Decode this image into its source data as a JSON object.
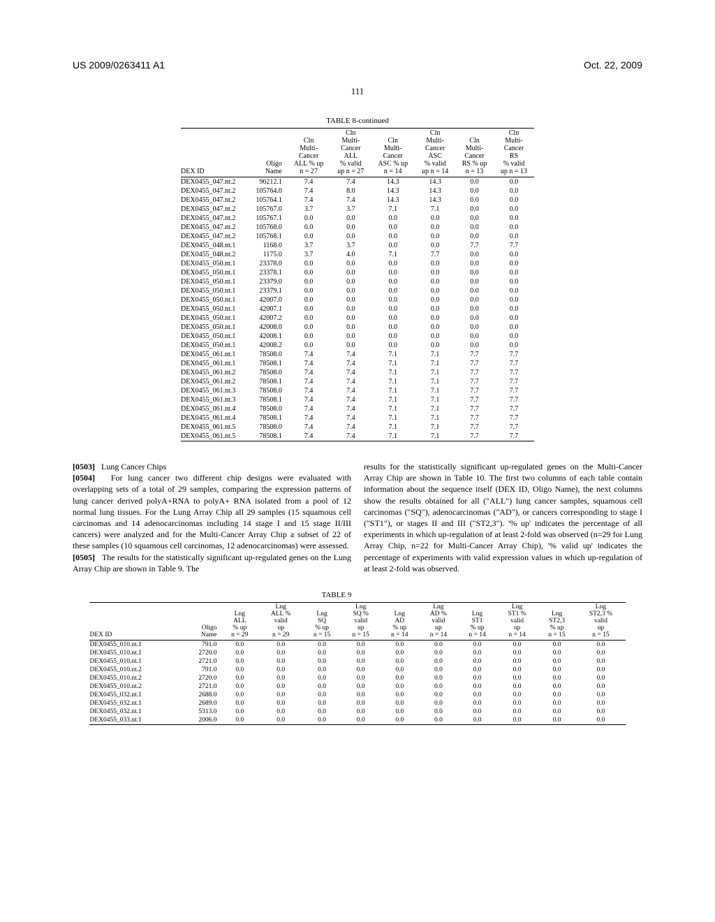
{
  "header": {
    "pub_no": "US 2009/0263411 A1",
    "date": "Oct. 22, 2009"
  },
  "page_number": "111",
  "table8": {
    "title": "TABLE 8-continued",
    "headers": [
      "DEX ID",
      "Oligo\nName",
      "Cln\nMulti-\nCancer\nALL % up\nn = 27",
      "Cln\nMulti-\nCancer\nALL\n% valid\nup n = 27",
      "Cln\nMulti-\nCancer\nASC % up\nn = 14",
      "Cln\nMulti-\nCancer\nASC\n% valid\nup n = 14",
      "Cln\nMulti-\nCancer\nRS % up\nn = 13",
      "Cln\nMulti-\nCancer\nRS\n% valid\nup n = 13"
    ],
    "rows": [
      [
        "DEX0455_047.nt.2",
        "96212.1",
        "7.4",
        "7.4",
        "14.3",
        "14.3",
        "0.0",
        "0.0"
      ],
      [
        "DEX0455_047.nt.2",
        "105764.0",
        "7.4",
        "8.0",
        "14.3",
        "14.3",
        "0.0",
        "0.0"
      ],
      [
        "DEX0455_047.nt.2",
        "105764.1",
        "7.4",
        "7.4",
        "14.3",
        "14.3",
        "0.0",
        "0.0"
      ],
      [
        "DEX0455_047.nt.2",
        "105767.0",
        "3.7",
        "3.7",
        "7.1",
        "7.1",
        "0.0",
        "0.0"
      ],
      [
        "DEX0455_047.nt.2",
        "105767.1",
        "0.0",
        "0.0",
        "0.0",
        "0.0",
        "0.0",
        "0.0"
      ],
      [
        "DEX0455_047.nt.2",
        "105768.0",
        "0.0",
        "0.0",
        "0.0",
        "0.0",
        "0.0",
        "0.0"
      ],
      [
        "DEX0455_047.nt.2",
        "105768.1",
        "0.0",
        "0.0",
        "0.0",
        "0.0",
        "0.0",
        "0.0"
      ],
      [
        "DEX0455_048.nt.1",
        "1168.0",
        "3.7",
        "3.7",
        "0.0",
        "0.0",
        "7.7",
        "7.7"
      ],
      [
        "DEX0455_048.nt.2",
        "1175.0",
        "3.7",
        "4.0",
        "7.1",
        "7.7",
        "0.0",
        "0.0"
      ],
      [
        "DEX0455_050.nt.1",
        "23378.0",
        "0.0",
        "0.0",
        "0.0",
        "0.0",
        "0.0",
        "0.0"
      ],
      [
        "DEX0455_050.nt.1",
        "23378.1",
        "0.0",
        "0.0",
        "0.0",
        "0.0",
        "0.0",
        "0.0"
      ],
      [
        "DEX0455_050.nt.1",
        "23379.0",
        "0.0",
        "0.0",
        "0.0",
        "0.0",
        "0.0",
        "0.0"
      ],
      [
        "DEX0455_050.nt.1",
        "23379.1",
        "0.0",
        "0.0",
        "0.0",
        "0.0",
        "0.0",
        "0.0"
      ],
      [
        "DEX0455_050.nt.1",
        "42007.0",
        "0.0",
        "0.0",
        "0.0",
        "0.0",
        "0.0",
        "0.0"
      ],
      [
        "DEX0455_050.nt.1",
        "42007.1",
        "0.0",
        "0.0",
        "0.0",
        "0.0",
        "0.0",
        "0.0"
      ],
      [
        "DEX0455_050.nt.1",
        "42007.2",
        "0.0",
        "0.0",
        "0.0",
        "0.0",
        "0.0",
        "0.0"
      ],
      [
        "DEX0455_050.nt.1",
        "42008.0",
        "0.0",
        "0.0",
        "0.0",
        "0.0",
        "0.0",
        "0.0"
      ],
      [
        "DEX0455_050.nt.1",
        "42008.1",
        "0.0",
        "0.0",
        "0.0",
        "0.0",
        "0.0",
        "0.0"
      ],
      [
        "DEX0455_050.nt.1",
        "42008.2",
        "0.0",
        "0.0",
        "0.0",
        "0.0",
        "0.0",
        "0.0"
      ],
      [
        "DEX0455_061.nt.1",
        "78508.0",
        "7.4",
        "7.4",
        "7.1",
        "7.1",
        "7.7",
        "7.7"
      ],
      [
        "DEX0455_061.nt.1",
        "78508.1",
        "7.4",
        "7.4",
        "7.1",
        "7.1",
        "7.7",
        "7.7"
      ],
      [
        "DEX0455_061.nt.2",
        "78508.0",
        "7.4",
        "7.4",
        "7.1",
        "7.1",
        "7.7",
        "7.7"
      ],
      [
        "DEX0455_061.nt.2",
        "78508.1",
        "7.4",
        "7.4",
        "7.1",
        "7.1",
        "7.7",
        "7.7"
      ],
      [
        "DEX0455_061.nt.3",
        "78508.0",
        "7.4",
        "7.4",
        "7.1",
        "7.1",
        "7.7",
        "7.7"
      ],
      [
        "DEX0455_061.nt.3",
        "78508.1",
        "7.4",
        "7.4",
        "7.1",
        "7.1",
        "7.7",
        "7.7"
      ],
      [
        "DEX0455_061.nt.4",
        "78508.0",
        "7.4",
        "7.4",
        "7.1",
        "7.1",
        "7.7",
        "7.7"
      ],
      [
        "DEX0455_061.nt.4",
        "78508.1",
        "7.4",
        "7.4",
        "7.1",
        "7.1",
        "7.7",
        "7.7"
      ],
      [
        "DEX0455_061.nt.5",
        "78508.0",
        "7.4",
        "7.4",
        "7.1",
        "7.1",
        "7.7",
        "7.7"
      ],
      [
        "DEX0455_061.nt.5",
        "78508.1",
        "7.4",
        "7.4",
        "7.1",
        "7.1",
        "7.7",
        "7.7"
      ]
    ]
  },
  "body": {
    "p0503_num": "[0503]",
    "p0503": "Lung Cancer Chips",
    "p0504_num": "[0504]",
    "p0504": "For lung cancer two different chip designs were evaluated with overlapping sets of a total of 29 samples, comparing the expression patterns of lung cancer derived polyA+RNA to polyA+ RNA isolated from a pool of 12 normal lung tissues. For the Lung Array Chip all 29 samples (15 squamous cell carcinomas and 14 adenocarcinomas including 14 stage I and 15 stage II/III cancers) were analyzed and for the Multi-Cancer Array Chip a subset of 22 of these samples (10 squamous cell carcinomas, 12 adenocarcinomas) were assessed.",
    "p0505_num": "[0505]",
    "p0505": "The results for the statistically significant up-regulated genes on the Lung Array Chip are shown in Table 9. The",
    "p_right": "results for the statistically significant up-regulated genes on the Multi-Cancer Array Chip are shown in Table 10. The first two columns of each table contain information about the sequence itself (DEX ID, Oligo Name), the next columns show the results obtained for all (\"ALL\") lung cancer samples, squamous cell carcinomas (\"SQ\"), adenocarcinomas (\"AD\"), or cancers corresponding to stage I (\"ST1\"), or stages II and III (\"ST2,3\"). '% up' indicates the percentage of all experiments in which up-regulation of at least 2-fold was observed (n=29 for Lung Array Chip, n=22 for Multi-Cancer Array Chip), '% valid up' indicates the percentage of experiments with valid expression values in which up-regulation of at least 2-fold was observed."
  },
  "table9": {
    "title": "TABLE 9",
    "headers": [
      "DEX ID",
      "Oligo\nName",
      "Lng\nALL\n% up\nn = 29",
      "Lng\nALL %\nvalid\nup\nn = 29",
      "Lng\nSQ\n% up\nn = 15",
      "Lng\nSQ %\nvalid\nup\nn = 15",
      "Lng\nAD\n% up\nn = 14",
      "Lng\nAD %\nvalid\nup\nn = 14",
      "Lng\nST1\n% up\nn = 14",
      "Lng\nST1 %\nvalid\nup\nn = 14",
      "Lng\nST2,3\n% up\nn = 15",
      "Lng\nST2,3 %\nvalid\nup\nn = 15"
    ],
    "rows": [
      [
        "DEX0455_010.nt.1",
        "791.0",
        "0.0",
        "0.0",
        "0.0",
        "0.0",
        "0.0",
        "0.0",
        "0.0",
        "0.0",
        "0.0",
        "0.0"
      ],
      [
        "DEX0455_010.nt.1",
        "2720.0",
        "0.0",
        "0.0",
        "0.0",
        "0.0",
        "0.0",
        "0.0",
        "0.0",
        "0.0",
        "0.0",
        "0.0"
      ],
      [
        "DEX0455_010.nt.1",
        "2721.0",
        "0.0",
        "0.0",
        "0.0",
        "0.0",
        "0.0",
        "0.0",
        "0.0",
        "0.0",
        "0.0",
        "0.0"
      ],
      [
        "DEX0455_010.nt.2",
        "791.0",
        "0.0",
        "0.0",
        "0.0",
        "0.0",
        "0.0",
        "0.0",
        "0.0",
        "0.0",
        "0.0",
        "0.0"
      ],
      [
        "DEX0455_010.nt.2",
        "2720.0",
        "0.0",
        "0.0",
        "0.0",
        "0.0",
        "0.0",
        "0.0",
        "0.0",
        "0.0",
        "0.0",
        "0.0"
      ],
      [
        "DEX0455_010.nt.2",
        "2721.0",
        "0.0",
        "0.0",
        "0.0",
        "0.0",
        "0.0",
        "0.0",
        "0.0",
        "0.0",
        "0.0",
        "0.0"
      ],
      [
        "DEX0455_032.nt.1",
        "2688.0",
        "0.0",
        "0.0",
        "0.0",
        "0.0",
        "0.0",
        "0.0",
        "0.0",
        "0.0",
        "0.0",
        "0.0"
      ],
      [
        "DEX0455_032.nt.1",
        "2689.0",
        "0.0",
        "0.0",
        "0.0",
        "0.0",
        "0.0",
        "0.0",
        "0.0",
        "0.0",
        "0.0",
        "0.0"
      ],
      [
        "DEX0455_032.nt.1",
        "5313.0",
        "0.0",
        "0.0",
        "0.0",
        "0.0",
        "0.0",
        "0.0",
        "0.0",
        "0.0",
        "0.0",
        "0.0"
      ],
      [
        "DEX0455_033.nt.1",
        "2006.0",
        "0.0",
        "0.0",
        "0.0",
        "0.0",
        "0.0",
        "0.0",
        "0.0",
        "0.0",
        "0.0",
        "0.0"
      ]
    ]
  }
}
